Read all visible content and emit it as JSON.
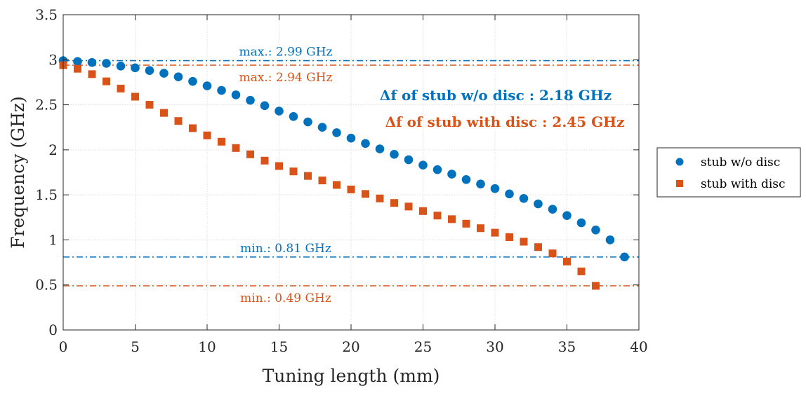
{
  "chart_data": {
    "type": "scatter",
    "xlabel": "Tuning length (mm)",
    "ylabel": "Frequency (GHz)",
    "xlim": [
      0,
      40
    ],
    "ylim": [
      0,
      3.5
    ],
    "xticks": [
      "0",
      "5",
      "10",
      "15",
      "20",
      "25",
      "30",
      "35",
      "40"
    ],
    "yticks": [
      "0",
      "0.5",
      "1",
      "1.5",
      "2",
      "2.5",
      "3",
      "3.5"
    ],
    "grid": true,
    "legend_position": "right, outside",
    "series": [
      {
        "name": "stub w/o disc",
        "marker": "circle",
        "color": "#0072BD",
        "x": [
          0,
          1,
          2,
          3,
          4,
          5,
          6,
          7,
          8,
          9,
          10,
          11,
          12,
          13,
          14,
          15,
          16,
          17,
          18,
          19,
          20,
          21,
          22,
          23,
          24,
          25,
          26,
          27,
          28,
          29,
          30,
          31,
          32,
          33,
          34,
          35,
          36,
          37,
          38,
          39
        ],
        "y": [
          2.99,
          2.98,
          2.97,
          2.96,
          2.93,
          2.91,
          2.88,
          2.85,
          2.81,
          2.76,
          2.71,
          2.66,
          2.61,
          2.55,
          2.49,
          2.43,
          2.37,
          2.31,
          2.25,
          2.19,
          2.13,
          2.07,
          2.01,
          1.95,
          1.89,
          1.83,
          1.78,
          1.73,
          1.67,
          1.62,
          1.57,
          1.51,
          1.46,
          1.4,
          1.34,
          1.27,
          1.19,
          1.11,
          1.0,
          0.81
        ]
      },
      {
        "name": "stub with disc",
        "marker": "square",
        "color": "#D95319",
        "x": [
          0,
          1,
          2,
          3,
          4,
          5,
          6,
          7,
          8,
          9,
          10,
          11,
          12,
          13,
          14,
          15,
          16,
          17,
          18,
          19,
          20,
          21,
          22,
          23,
          24,
          25,
          26,
          27,
          28,
          29,
          30,
          31,
          32,
          33,
          34,
          35,
          36,
          37
        ],
        "y": [
          2.94,
          2.9,
          2.84,
          2.76,
          2.68,
          2.59,
          2.5,
          2.41,
          2.32,
          2.24,
          2.16,
          2.09,
          2.02,
          1.95,
          1.88,
          1.82,
          1.76,
          1.71,
          1.66,
          1.61,
          1.56,
          1.51,
          1.46,
          1.41,
          1.37,
          1.32,
          1.27,
          1.23,
          1.18,
          1.13,
          1.08,
          1.03,
          0.98,
          0.92,
          0.85,
          0.76,
          0.65,
          0.49
        ]
      }
    ],
    "reference_lines": [
      {
        "y": 2.99,
        "color": "#0072BD",
        "label": "max.: 2.99 GHz",
        "label_pos": "above"
      },
      {
        "y": 2.94,
        "color": "#D95319",
        "label": "max.: 2.94 GHz",
        "label_pos": "below"
      },
      {
        "y": 0.81,
        "color": "#0072BD",
        "label": "min.: 0.81 GHz",
        "label_pos": "above"
      },
      {
        "y": 0.49,
        "color": "#D95319",
        "label": "min.: 0.49 GHz",
        "label_pos": "below"
      }
    ],
    "annotations": [
      {
        "text": "Δf of stub w/o disc : 2.18 GHz",
        "color": "#0072BD"
      },
      {
        "text": "Δf of stub with disc : 2.45 GHz",
        "color": "#D95319"
      }
    ]
  }
}
